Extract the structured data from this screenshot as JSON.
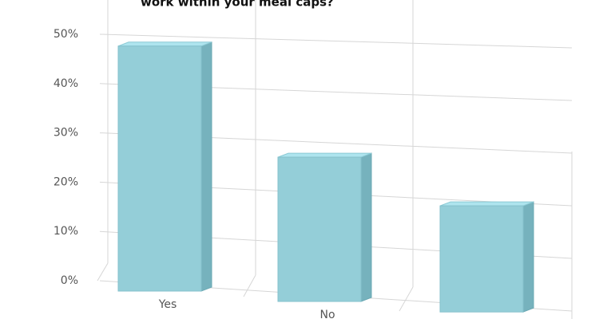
{
  "chart_data": {
    "type": "bar3d",
    "title": "work within your meal caps?",
    "categories": [
      "Yes",
      "No",
      null
    ],
    "values": [
      48,
      27,
      19
    ],
    "color": "#94ced8",
    "ylim": [
      0,
      50
    ],
    "yticks": [
      {
        "value": 0,
        "label": "0%"
      },
      {
        "value": 10,
        "label": "10%"
      },
      {
        "value": 20,
        "label": "20%"
      },
      {
        "value": 30,
        "label": "30%"
      },
      {
        "value": 40,
        "label": "40%"
      },
      {
        "value": 50,
        "label": "50%"
      }
    ],
    "grid": true
  }
}
